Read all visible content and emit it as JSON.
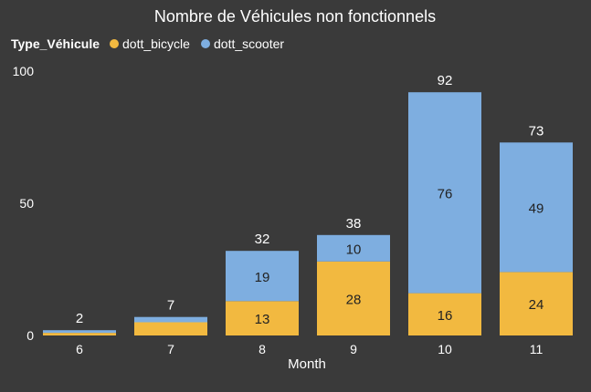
{
  "chart_data": {
    "type": "bar",
    "stacked": true,
    "title": "Nombre de Véhicules non fonctionnels",
    "legend": {
      "title": "Type_Véhicule",
      "position": "top-left"
    },
    "xlabel": "Month",
    "ylabel": "",
    "categories": [
      "6",
      "7",
      "8",
      "9",
      "10",
      "11"
    ],
    "ylim": [
      0,
      100
    ],
    "yticks": [
      "0",
      "50",
      "100"
    ],
    "grid": false,
    "series": [
      {
        "name": "dott_bicycle",
        "color": "#f2b940",
        "values": [
          1,
          5,
          13,
          28,
          16,
          24
        ],
        "labels": [
          "",
          "",
          "13",
          "28",
          "16",
          "24"
        ]
      },
      {
        "name": "dott_scooter",
        "color": "#7eaee0",
        "values": [
          1,
          2,
          19,
          10,
          76,
          49
        ],
        "labels": [
          "",
          "",
          "19",
          "10",
          "76",
          "49"
        ]
      }
    ],
    "totals": [
      "2",
      "7",
      "32",
      "38",
      "92",
      "73"
    ]
  }
}
